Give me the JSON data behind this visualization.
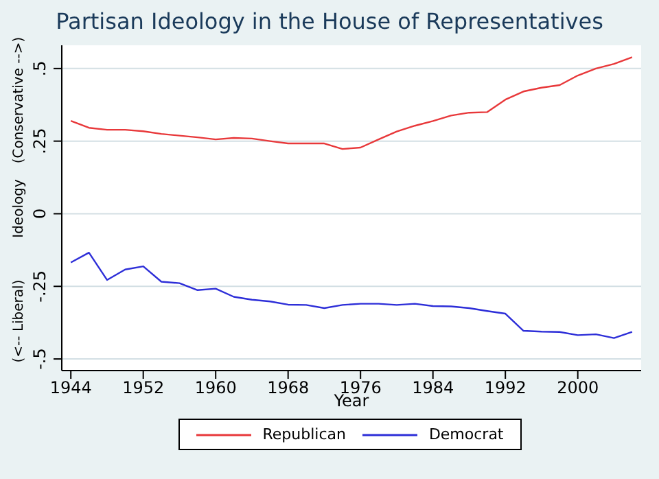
{
  "chart_data": {
    "type": "line",
    "title": "Partisan Ideology in the House of Representatives",
    "xlabel": "Year",
    "ylabel": "Ideology",
    "annotations": [
      "(Conservative -->)",
      "(<-- Liberal)"
    ],
    "x": [
      1944,
      1946,
      1948,
      1950,
      1952,
      1954,
      1956,
      1958,
      1960,
      1962,
      1964,
      1966,
      1968,
      1970,
      1972,
      1974,
      1976,
      1978,
      1980,
      1982,
      1984,
      1986,
      1988,
      1990,
      1992,
      1994,
      1996,
      1998,
      2000,
      2002,
      2004,
      2006
    ],
    "series": [
      {
        "name": "Republican",
        "color": "#e8383a",
        "values": [
          0.32,
          0.296,
          0.289,
          0.289,
          0.284,
          0.275,
          0.269,
          0.263,
          0.256,
          0.261,
          0.259,
          0.25,
          0.242,
          0.242,
          0.242,
          0.223,
          0.228,
          0.256,
          0.283,
          0.303,
          0.319,
          0.338,
          0.348,
          0.35,
          0.393,
          0.421,
          0.434,
          0.443,
          0.476,
          0.5,
          0.516,
          0.539
        ]
      },
      {
        "name": "Democrat",
        "color": "#2d2ed8",
        "values": [
          -0.168,
          -0.134,
          -0.228,
          -0.192,
          -0.181,
          -0.234,
          -0.239,
          -0.263,
          -0.258,
          -0.286,
          -0.296,
          -0.302,
          -0.313,
          -0.314,
          -0.325,
          -0.314,
          -0.31,
          -0.31,
          -0.314,
          -0.31,
          -0.318,
          -0.319,
          -0.325,
          -0.335,
          -0.344,
          -0.403,
          -0.406,
          -0.407,
          -0.418,
          -0.415,
          -0.428,
          -0.407
        ]
      }
    ],
    "xlim": [
      1943,
      2007
    ],
    "xticks": [
      1944,
      1952,
      1960,
      1968,
      1976,
      1984,
      1992,
      2000
    ],
    "ylim": [
      -0.54,
      0.58
    ],
    "yticks": [
      {
        "value": -0.5,
        "label": "-.5"
      },
      {
        "value": -0.25,
        "label": "-.25"
      },
      0,
      {
        "value": 0.25,
        "label": ".25"
      },
      {
        "value": 0.5,
        "label": ".5"
      }
    ],
    "grid": "y",
    "legend": "bottom",
    "marker": "none",
    "line_style": "solid"
  }
}
